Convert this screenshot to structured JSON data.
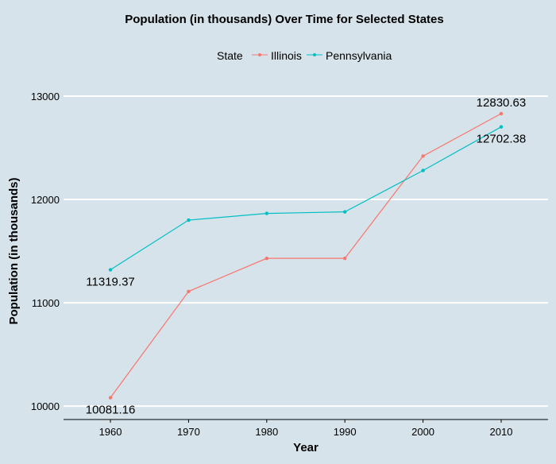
{
  "chart_data": {
    "type": "line",
    "title": "Population (in thousands) Over Time for Selected States",
    "xlabel": "Year",
    "ylabel": "Population (in thousands)",
    "x": [
      1960,
      1970,
      1980,
      1990,
      2000,
      2010
    ],
    "x_tick_labels": [
      "1960",
      "1970",
      "1980",
      "1990",
      "2000",
      "2010"
    ],
    "xlim": [
      1954,
      2016
    ],
    "ylim": [
      9870,
      13200
    ],
    "y_ticks": [
      10000,
      11000,
      12000,
      13000
    ],
    "y_tick_labels": [
      "10000",
      "11000",
      "12000",
      "13000"
    ],
    "grid": "horizontal major lines (white)",
    "legend": {
      "title": "State",
      "position": "top"
    },
    "series": [
      {
        "name": "Illinois",
        "color": "#f8766d",
        "values": [
          10081.16,
          11110,
          11430,
          11430,
          12420,
          12830.63
        ]
      },
      {
        "name": "Pennsylvania",
        "color": "#00bfc4",
        "values": [
          11319.37,
          11800,
          11865,
          11880,
          12280,
          12702.38
        ]
      }
    ],
    "annotations": [
      {
        "series": "Illinois",
        "x": 1960,
        "text": "10081.16"
      },
      {
        "series": "Illinois",
        "x": 2010,
        "text": "12830.63"
      },
      {
        "series": "Pennsylvania",
        "x": 1960,
        "text": "11319.37"
      },
      {
        "series": "Pennsylvania",
        "x": 2010,
        "text": "12702.38"
      }
    ]
  }
}
